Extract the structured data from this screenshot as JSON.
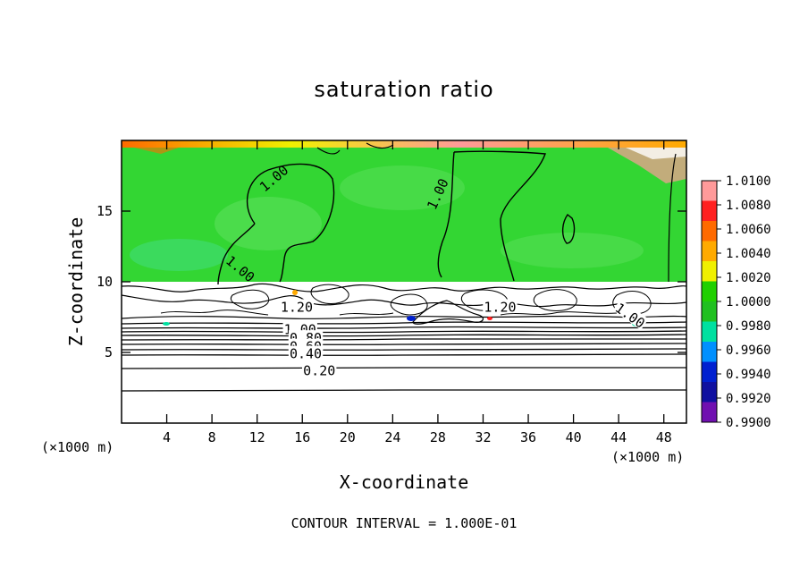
{
  "chart_data": {
    "type": "contour",
    "title": "saturation ratio",
    "xlabel": "X-coordinate",
    "ylabel": "Z-coordinate",
    "x_unit": "(×1000 m)",
    "xlim": [
      0,
      50
    ],
    "ylim": [
      0,
      20
    ],
    "x_ticks": [
      4,
      8,
      12,
      16,
      20,
      24,
      28,
      32,
      36,
      40,
      44,
      48
    ],
    "y_ticks": [
      5,
      10,
      15
    ],
    "contour_interval_text": "CONTOUR INTERVAL = 1.000E-01",
    "contour_labels": [
      {
        "text": "1.00",
        "x": 13.5,
        "y": 17.3,
        "rot": -40
      },
      {
        "text": "1.00",
        "x": 28.0,
        "y": 16.2,
        "rot": -65
      },
      {
        "text": "1.00",
        "x": 10.5,
        "y": 10.9,
        "rot": 40
      },
      {
        "text": "1.20",
        "x": 15.5,
        "y": 8.2,
        "rot": 0
      },
      {
        "text": "1.20",
        "x": 33.5,
        "y": 8.2,
        "rot": 0
      },
      {
        "text": "1.00",
        "x": 45.0,
        "y": 7.6,
        "rot": 35
      },
      {
        "text": "1.00",
        "x": 15.8,
        "y": 6.6,
        "rot": 0
      },
      {
        "text": "0.80",
        "x": 16.3,
        "y": 6.0,
        "rot": 0
      },
      {
        "text": "0.60",
        "x": 16.3,
        "y": 5.4,
        "rot": 0
      },
      {
        "text": "0.40",
        "x": 16.3,
        "y": 4.9,
        "rot": 0
      },
      {
        "text": "0.20",
        "x": 17.5,
        "y": 3.7,
        "rot": 0
      }
    ],
    "colorbar": {
      "labels": [
        "1.0100",
        "1.0080",
        "1.0060",
        "1.0040",
        "1.0020",
        "1.0000",
        "0.9980",
        "0.9960",
        "0.9940",
        "0.9920",
        "0.9900"
      ],
      "colors": [
        "#ff9a9a",
        "#ff2020",
        "#ff6a00",
        "#ffaa00",
        "#f0f000",
        "#20d000",
        "#20c020",
        "#00e0a0",
        "#0090ff",
        "#0020d0",
        "#1010a0",
        "#7010b0"
      ]
    },
    "colors": {
      "field_green": "#33d633",
      "field_light": "#5be05b"
    }
  }
}
